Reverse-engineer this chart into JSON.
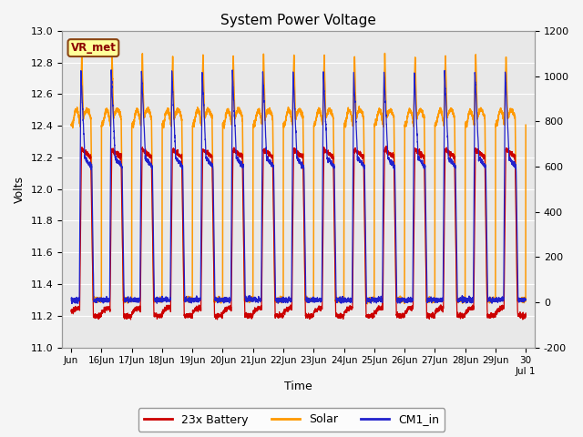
{
  "title": "System Power Voltage",
  "xlabel": "Time",
  "ylabel": "Volts",
  "annotation": "VR_met",
  "ylim_left": [
    11.0,
    13.0
  ],
  "ylim_right": [
    -200,
    1200
  ],
  "xtick_labels": [
    "Jun",
    "16Jun",
    "17Jun",
    "18Jun",
    "19Jun",
    "20Jun",
    "21Jun",
    "22Jun",
    "23Jun",
    "24Jun",
    "25Jun",
    "26Jun",
    "27Jun",
    "28Jun",
    "29Jun",
    "30\nJul 1"
  ],
  "legend_labels": [
    "23x Battery",
    "Solar",
    "CM1_in"
  ],
  "colors": {
    "battery": "#cc0000",
    "solar": "#ff9900",
    "cm1": "#2222cc",
    "background_inner": "#e8e8e8",
    "background_outer": "#f5f5f5",
    "grid": "#ffffff"
  },
  "num_days": 15,
  "right_axis_ticks": [
    -200,
    0,
    200,
    400,
    600,
    800,
    1000,
    1200
  ],
  "left_axis_ticks": [
    11.0,
    11.2,
    11.4,
    11.6,
    11.8,
    12.0,
    12.2,
    12.4,
    12.6,
    12.8,
    13.0
  ],
  "figsize": [
    6.4,
    4.8
  ],
  "dpi": 100
}
